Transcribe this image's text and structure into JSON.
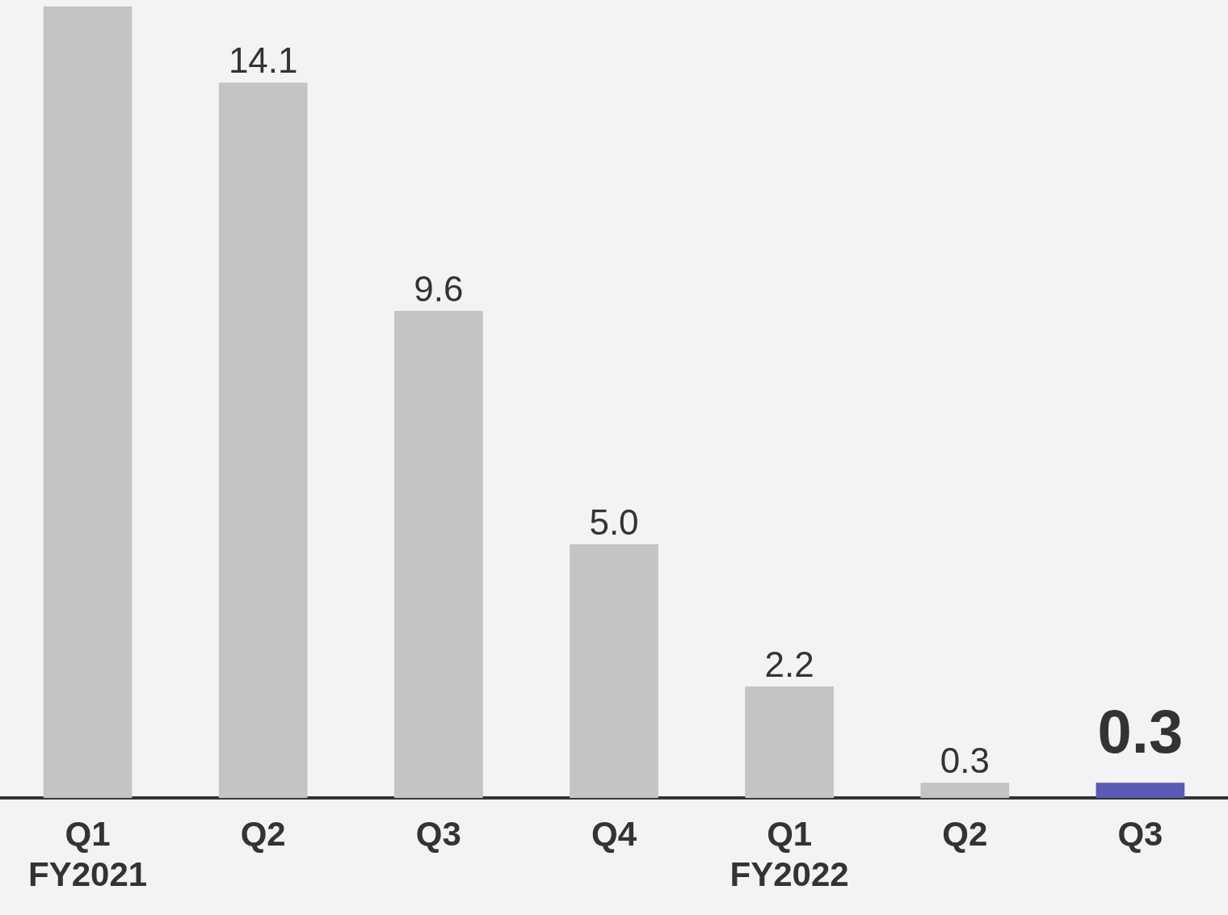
{
  "chart_data": {
    "type": "bar",
    "categories": [
      "Q1\nFY2021",
      "Q2",
      "Q3",
      "Q4",
      "Q1\nFY2022",
      "Q2",
      "Q3"
    ],
    "values": [
      15.6,
      14.1,
      9.6,
      5.0,
      2.2,
      0.3,
      0.3
    ],
    "colors": [
      "#c4c4c4",
      "#c4c4c4",
      "#c4c4c4",
      "#c4c4c4",
      "#c4c4c4",
      "#c4c4c4",
      "#5a5ab8"
    ],
    "value_labels": [
      null,
      "14.1",
      "9.6",
      "5.0",
      "2.2",
      "0.3",
      "0.3"
    ],
    "ylim": [
      0,
      15.6
    ],
    "tick_labels": "x",
    "legend": false
  }
}
